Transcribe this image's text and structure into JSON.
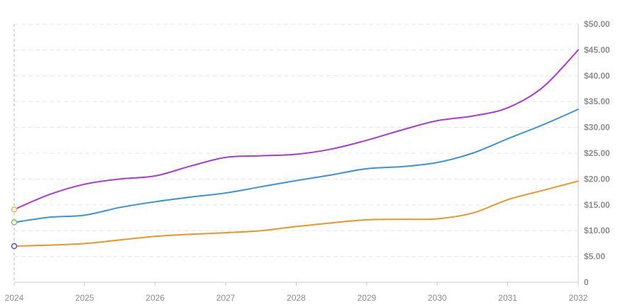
{
  "chart_data": {
    "type": "line",
    "x": [
      2024,
      2024.5,
      2025,
      2025.5,
      2026,
      2026.5,
      2027,
      2027.5,
      2028,
      2028.5,
      2029,
      2029.5,
      2030,
      2030.5,
      2031,
      2031.5,
      2032
    ],
    "xticks": [
      "2024",
      "2025",
      "2026",
      "2027",
      "2028",
      "2029",
      "2030",
      "2031",
      "2032"
    ],
    "yticks": [
      "0",
      "$5.00",
      "$10.00",
      "$15.00",
      "$20.00",
      "$25.00",
      "$30.00",
      "$35.00",
      "$40.00",
      "$45.00",
      "$50.00"
    ],
    "ylim": [
      0,
      50
    ],
    "xlim": [
      2024,
      2032
    ],
    "grid": true,
    "y_axis_position": "right",
    "series": [
      {
        "color": "#a93ad8",
        "values": [
          14.1,
          17.0,
          19.0,
          20.0,
          20.6,
          22.5,
          24.2,
          24.5,
          24.8,
          25.8,
          27.5,
          29.5,
          31.3,
          32.2,
          33.8,
          37.8,
          45.0
        ]
      },
      {
        "color": "#3a93d8",
        "values": [
          11.6,
          12.6,
          13.0,
          14.5,
          15.6,
          16.5,
          17.3,
          18.5,
          19.7,
          20.8,
          22.0,
          22.4,
          23.2,
          25.0,
          27.8,
          30.5,
          33.5
        ]
      },
      {
        "color": "#e8962a",
        "values": [
          7.0,
          7.2,
          7.5,
          8.2,
          8.9,
          9.3,
          9.6,
          10.0,
          10.8,
          11.5,
          12.1,
          12.2,
          12.3,
          13.4,
          16.0,
          17.8,
          19.6
        ]
      }
    ],
    "start_markers": [
      {
        "value": 14.1,
        "color": "#e8b25a"
      },
      {
        "value": 11.6,
        "color": "#7cbf5a"
      },
      {
        "value": 7.0,
        "color": "#5a4ec8"
      }
    ]
  }
}
